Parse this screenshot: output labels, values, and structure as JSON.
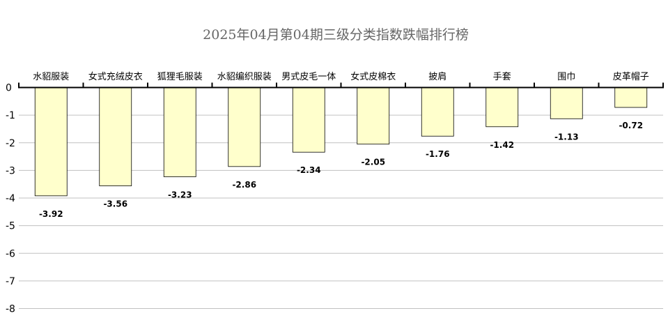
{
  "chart_data": {
    "type": "bar",
    "title": "2025年04月第04期三级分类指数跌幅排行榜",
    "categories": [
      "水貂服装",
      "女式充绒皮衣",
      "狐狸毛服装",
      "水貂编织服装",
      "男式皮毛一体",
      "女式皮棉衣",
      "披肩",
      "手套",
      "围巾",
      "皮革帽子"
    ],
    "values": [
      -3.92,
      -3.56,
      -3.23,
      -2.86,
      -2.34,
      -2.05,
      -1.76,
      -1.42,
      -1.13,
      -0.72
    ],
    "ylim": [
      -8,
      0
    ],
    "yticks": [
      "0",
      "-1",
      "-2",
      "-3",
      "-4",
      "-5",
      "-6",
      "-7",
      "-8"
    ],
    "data_labels": [
      "-3.92",
      "-3.56",
      "-3.23",
      "-2.86",
      "-2.34",
      "-2.05",
      "-1.76",
      "-1.42",
      "-1.13",
      "-0.72"
    ],
    "xlabel": "",
    "ylabel": "",
    "grid": true,
    "bar_color": "#ffffcc",
    "bar_border_color": "#000000",
    "grid_color": "#c0c0c0",
    "title_color": "#666666"
  }
}
